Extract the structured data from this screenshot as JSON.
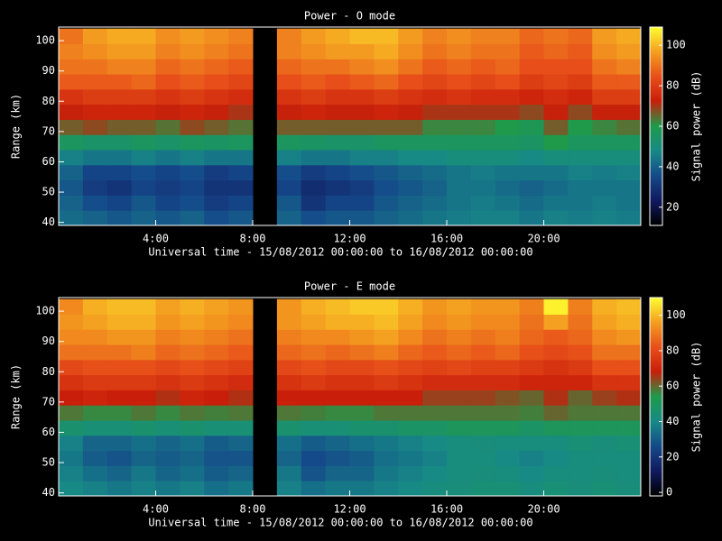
{
  "chart_data": [
    {
      "type": "heatmap",
      "title": "Power - O mode",
      "xlabel": "Universal time - 15/08/2012 00:00:00 to 16/08/2012 00:00:00",
      "ylabel": "Range (km)",
      "colorbar_label": "Signal power (dB)",
      "x_edges": [
        0,
        1,
        2,
        3,
        4,
        5,
        6,
        7,
        8,
        9,
        10,
        11,
        12,
        13,
        14,
        15,
        16,
        17,
        18,
        19,
        20,
        21,
        22,
        23,
        24
      ],
      "y_edges": [
        39,
        44,
        49,
        54,
        59,
        64,
        69,
        74,
        79,
        84,
        89,
        94,
        99,
        104
      ],
      "z": [
        [
          42,
          40,
          38,
          40,
          38,
          40,
          36,
          38,
          null,
          40,
          36,
          38,
          38,
          40,
          42,
          44,
          45,
          46,
          46,
          44,
          46,
          45,
          46,
          45
        ],
        [
          40,
          36,
          34,
          38,
          34,
          36,
          32,
          34,
          null,
          38,
          30,
          34,
          34,
          38,
          40,
          42,
          44,
          45,
          44,
          42,
          44,
          44,
          45,
          44
        ],
        [
          38,
          32,
          30,
          34,
          32,
          34,
          30,
          30,
          null,
          34,
          28,
          30,
          32,
          36,
          38,
          40,
          44,
          44,
          42,
          40,
          42,
          44,
          44,
          44
        ],
        [
          40,
          34,
          34,
          36,
          34,
          36,
          32,
          34,
          null,
          36,
          32,
          34,
          36,
          38,
          40,
          42,
          44,
          45,
          44,
          44,
          44,
          46,
          45,
          46
        ],
        [
          46,
          44,
          44,
          46,
          44,
          46,
          44,
          44,
          null,
          46,
          44,
          44,
          46,
          46,
          48,
          48,
          50,
          50,
          50,
          48,
          50,
          50,
          50,
          50
        ],
        [
          56,
          54,
          54,
          56,
          54,
          56,
          55,
          56,
          null,
          56,
          55,
          54,
          54,
          56,
          56,
          56,
          56,
          56,
          56,
          55,
          60,
          56,
          56,
          56
        ],
        [
          66,
          68,
          66,
          66,
          64,
          68,
          66,
          64,
          null,
          66,
          66,
          66,
          66,
          66,
          66,
          62,
          62,
          62,
          60,
          58,
          66,
          60,
          62,
          64
        ],
        [
          72,
          74,
          74,
          74,
          72,
          74,
          72,
          70,
          null,
          72,
          74,
          72,
          72,
          74,
          72,
          70,
          70,
          70,
          70,
          68,
          72,
          68,
          72,
          72
        ],
        [
          78,
          80,
          80,
          80,
          78,
          80,
          78,
          76,
          null,
          78,
          80,
          78,
          78,
          80,
          78,
          76,
          78,
          76,
          76,
          74,
          76,
          74,
          80,
          80
        ],
        [
          86,
          86,
          86,
          88,
          84,
          86,
          84,
          82,
          null,
          84,
          86,
          84,
          86,
          88,
          84,
          82,
          84,
          82,
          84,
          80,
          82,
          80,
          86,
          86
        ],
        [
          90,
          90,
          92,
          92,
          88,
          90,
          88,
          86,
          null,
          88,
          90,
          90,
          92,
          94,
          90,
          86,
          88,
          86,
          88,
          84,
          84,
          84,
          90,
          92
        ],
        [
          92,
          94,
          96,
          96,
          92,
          94,
          92,
          90,
          null,
          92,
          94,
          96,
          96,
          98,
          94,
          90,
          92,
          90,
          90,
          86,
          88,
          86,
          94,
          96
        ],
        [
          90,
          96,
          98,
          98,
          94,
          96,
          94,
          92,
          null,
          92,
          96,
          98,
          100,
          100,
          96,
          92,
          94,
          92,
          92,
          88,
          90,
          88,
          96,
          98
        ]
      ],
      "xlim": [
        0,
        24
      ],
      "ylim": [
        39,
        104.5
      ],
      "clim": [
        11,
        109
      ],
      "xticks": [
        {
          "value": 4,
          "label": "4:00"
        },
        {
          "value": 8,
          "label": "8:00"
        },
        {
          "value": 12,
          "label": "12:00"
        },
        {
          "value": 16,
          "label": "16:00"
        },
        {
          "value": 20,
          "label": "20:00"
        }
      ],
      "yticks": [
        40,
        50,
        60,
        70,
        80,
        90,
        100
      ],
      "cticks": [
        20,
        40,
        60,
        80,
        100
      ],
      "colormap": [
        "#000000",
        "#101a60",
        "#154a8a",
        "#178a86",
        "#1f9a4a",
        "#c81e0a",
        "#e8501a",
        "#f4a020",
        "#ffff30"
      ]
    },
    {
      "type": "heatmap",
      "title": "Power - E mode",
      "xlabel": "Universal time - 15/08/2012 00:00:00 to 16/08/2012 00:00:00",
      "ylabel": "Range (km)",
      "colorbar_label": "Signal power (dB)",
      "x_edges": [
        0,
        1,
        2,
        3,
        4,
        5,
        6,
        7,
        8,
        9,
        10,
        11,
        12,
        13,
        14,
        15,
        16,
        17,
        18,
        19,
        20,
        21,
        22,
        23,
        24
      ],
      "y_edges": [
        39,
        44,
        49,
        54,
        59,
        64,
        69,
        74,
        79,
        84,
        89,
        94,
        99,
        104
      ],
      "z": [
        [
          40,
          38,
          36,
          38,
          36,
          38,
          34,
          36,
          null,
          38,
          34,
          36,
          36,
          38,
          40,
          42,
          43,
          44,
          44,
          42,
          44,
          43,
          44,
          43
        ],
        [
          38,
          34,
          32,
          36,
          32,
          34,
          30,
          32,
          null,
          36,
          28,
          32,
          32,
          36,
          38,
          40,
          42,
          43,
          42,
          40,
          42,
          42,
          43,
          42
        ],
        [
          36,
          30,
          28,
          32,
          30,
          32,
          28,
          28,
          null,
          32,
          26,
          28,
          30,
          34,
          36,
          38,
          42,
          42,
          40,
          38,
          40,
          42,
          42,
          42
        ],
        [
          38,
          32,
          32,
          34,
          32,
          34,
          30,
          32,
          null,
          34,
          30,
          32,
          34,
          36,
          38,
          40,
          42,
          43,
          42,
          42,
          42,
          44,
          43,
          44
        ],
        [
          46,
          44,
          44,
          46,
          44,
          46,
          44,
          44,
          null,
          46,
          44,
          44,
          46,
          46,
          48,
          48,
          50,
          50,
          50,
          48,
          50,
          50,
          50,
          50
        ],
        [
          58,
          56,
          56,
          58,
          56,
          58,
          57,
          58,
          null,
          58,
          57,
          56,
          56,
          58,
          58,
          58,
          58,
          58,
          58,
          57,
          60,
          58,
          58,
          58
        ],
        [
          68,
          70,
          68,
          68,
          66,
          70,
          68,
          66,
          null,
          68,
          68,
          68,
          68,
          68,
          68,
          64,
          64,
          64,
          62,
          60,
          66,
          60,
          64,
          66
        ],
        [
          74,
          76,
          76,
          76,
          74,
          76,
          74,
          72,
          null,
          74,
          76,
          74,
          74,
          76,
          74,
          72,
          72,
          72,
          72,
          70,
          70,
          70,
          74,
          74
        ],
        [
          80,
          82,
          82,
          82,
          80,
          82,
          80,
          78,
          null,
          80,
          82,
          80,
          80,
          82,
          80,
          78,
          80,
          78,
          78,
          76,
          74,
          76,
          82,
          82
        ],
        [
          88,
          88,
          88,
          90,
          86,
          88,
          86,
          84,
          null,
          86,
          88,
          86,
          88,
          90,
          86,
          84,
          86,
          84,
          86,
          82,
          80,
          82,
          88,
          88
        ],
        [
          92,
          92,
          94,
          94,
          90,
          92,
          90,
          88,
          null,
          90,
          92,
          92,
          94,
          96,
          92,
          88,
          90,
          88,
          90,
          86,
          84,
          86,
          92,
          94
        ],
        [
          94,
          96,
          98,
          98,
          94,
          96,
          94,
          92,
          null,
          94,
          96,
          98,
          98,
          100,
          96,
          92,
          94,
          92,
          92,
          88,
          96,
          88,
          96,
          98
        ],
        [
          92,
          98,
          100,
          100,
          96,
          98,
          96,
          94,
          null,
          94,
          98,
          100,
          102,
          102,
          98,
          94,
          96,
          94,
          94,
          90,
          108,
          90,
          98,
          100
        ]
      ],
      "xlim": [
        0,
        24
      ],
      "ylim": [
        39,
        104.5
      ],
      "clim": [
        -2,
        110
      ],
      "xticks": [
        {
          "value": 4,
          "label": "4:00"
        },
        {
          "value": 8,
          "label": "8:00"
        },
        {
          "value": 12,
          "label": "12:00"
        },
        {
          "value": 16,
          "label": "16:00"
        },
        {
          "value": 20,
          "label": "20:00"
        }
      ],
      "yticks": [
        40,
        50,
        60,
        70,
        80,
        90,
        100
      ],
      "cticks": [
        0,
        20,
        40,
        60,
        80,
        100
      ],
      "colormap": [
        "#000000",
        "#101a60",
        "#154a8a",
        "#178a86",
        "#1f9a4a",
        "#c81e0a",
        "#e8501a",
        "#f4a020",
        "#ffff30"
      ]
    }
  ]
}
